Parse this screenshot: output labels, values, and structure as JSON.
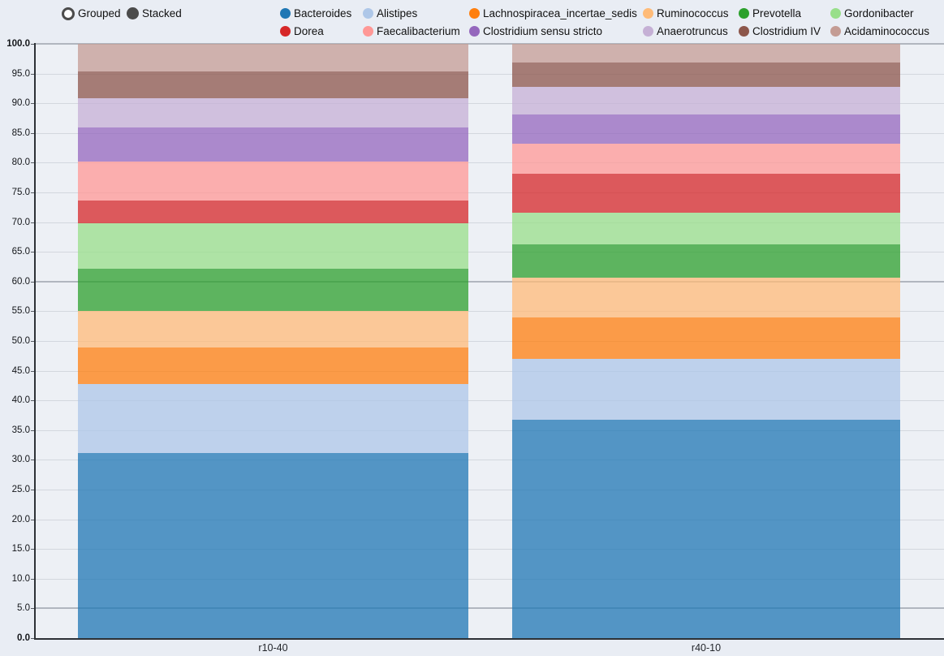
{
  "controls": {
    "grouped_label": "Grouped",
    "stacked_label": "Stacked",
    "selected_mode": "Stacked"
  },
  "chart_data": {
    "type": "bar",
    "stacked": true,
    "orientation": "vertical",
    "title": "",
    "xlabel": "",
    "ylabel": "",
    "categories": [
      "r10-40",
      "r40-10"
    ],
    "series": [
      {
        "name": "Bacteroides",
        "color": "#1f77b4",
        "values": [
          31.1,
          36.8
        ]
      },
      {
        "name": "Alistipes",
        "color": "#aec7e8",
        "values": [
          11.7,
          10.2
        ]
      },
      {
        "name": "Lachnospiracea_incertae_sedis",
        "color": "#ff7f0e",
        "values": [
          6.1,
          6.9
        ]
      },
      {
        "name": "Ruminococcus",
        "color": "#ffbb78",
        "values": [
          6.2,
          6.7
        ]
      },
      {
        "name": "Prevotella",
        "color": "#2ca02c",
        "values": [
          7.1,
          5.7
        ]
      },
      {
        "name": "Gordonibacter",
        "color": "#98df8a",
        "values": [
          7.6,
          5.3
        ]
      },
      {
        "name": "Dorea",
        "color": "#d62728",
        "values": [
          3.9,
          6.6
        ]
      },
      {
        "name": "Faecalibacterium",
        "color": "#ff9896",
        "values": [
          6.5,
          5.0
        ]
      },
      {
        "name": "Clostridium sensu stricto",
        "color": "#9467bd",
        "values": [
          5.7,
          4.9
        ]
      },
      {
        "name": "Anaerotruncus",
        "color": "#c5b0d5",
        "values": [
          4.9,
          4.7
        ]
      },
      {
        "name": "Clostridium IV",
        "color": "#8c564b",
        "values": [
          4.6,
          4.0
        ]
      },
      {
        "name": "Acidaminococcus",
        "color": "#c49c94",
        "values": [
          4.6,
          3.2
        ]
      }
    ],
    "ylim": [
      0,
      100
    ],
    "ytick_step": 5,
    "ytick_format_decimals": 1,
    "grid": true,
    "emphasis_gridlines": [
      100,
      60,
      5
    ],
    "bar_fill_opacity": 0.75,
    "legend_position": "top"
  }
}
